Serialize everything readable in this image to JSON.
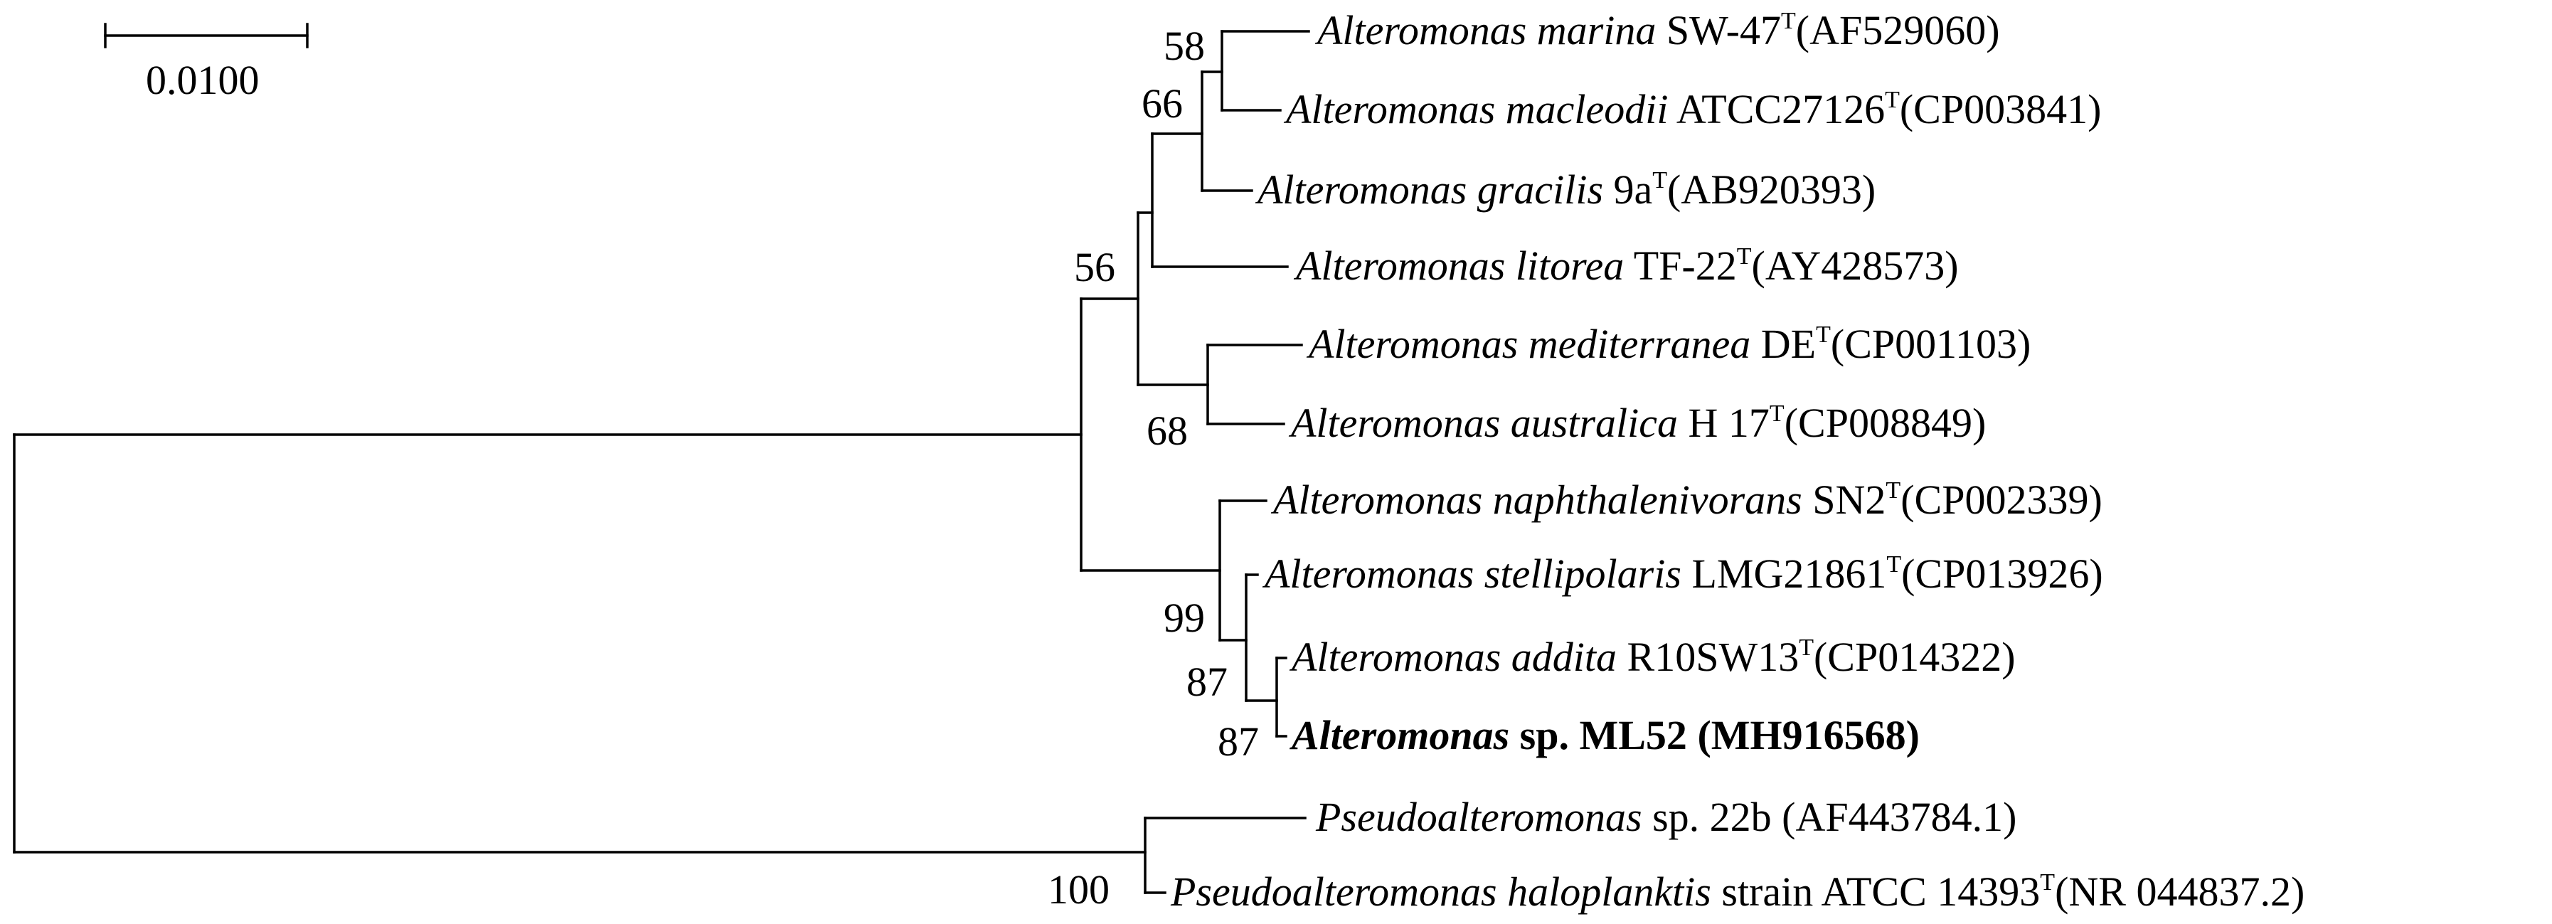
{
  "scale_bar": {
    "label": "0.0100"
  },
  "taxa": [
    {
      "genus": "Alteromonas",
      "species": "marina",
      "strain": "SW-47",
      "type_mark": "T",
      "accession": "(AF529060)",
      "bold": false
    },
    {
      "genus": "Alteromonas",
      "species": "macleodii",
      "strain": "ATCC27126",
      "type_mark": "T",
      "accession": "(CP003841)",
      "bold": false
    },
    {
      "genus": "Alteromonas",
      "species": "gracilis",
      "strain": "9a",
      "type_mark": "T",
      "accession": "(AB920393)",
      "bold": false
    },
    {
      "genus": "Alteromonas",
      "species": "litorea",
      "strain": "TF-22",
      "type_mark": "T",
      "accession": "(AY428573)",
      "bold": false
    },
    {
      "genus": "Alteromonas",
      "species": "mediterranea",
      "strain": "DE",
      "type_mark": "T",
      "accession": "(CP001103)",
      "bold": false
    },
    {
      "genus": "Alteromonas",
      "species": "australica",
      "strain": "H 17",
      "type_mark": "T",
      "accession": "(CP008849)",
      "bold": false
    },
    {
      "genus": "Alteromonas",
      "species": "naphthalenivorans",
      "strain": "SN2",
      "type_mark": "T",
      "accession": "(CP002339)",
      "bold": false
    },
    {
      "genus": "Alteromonas",
      "species": "stellipolaris",
      "strain": "LMG21861",
      "type_mark": "T",
      "accession": "(CP013926)",
      "bold": false
    },
    {
      "genus": "Alteromonas",
      "species": "addita",
      "strain": "R10SW13",
      "type_mark": "T",
      "accession": "(CP014322)",
      "bold": false
    },
    {
      "genus": "Alteromonas",
      "species": "",
      "strain": "sp. ML52",
      "type_mark": "",
      "accession": "(MH916568)",
      "bold": true
    },
    {
      "genus": "Pseudoalteromonas",
      "species": "",
      "strain": "sp. 22b",
      "type_mark": "",
      "accession": "(AF443784.1)",
      "bold": false
    },
    {
      "genus": "Pseudoalteromonas",
      "species": "haloplanktis",
      "strain": "strain ATCC 14393",
      "type_mark": "T",
      "accession": "(NR 044837.2)",
      "bold": false
    }
  ],
  "bootstrap": {
    "marina_macleodii": "58",
    "marina_gracilis": "66",
    "alteromonas_upper": "56",
    "mediterranea_australica": "68",
    "naphthalenivorans_group": "99",
    "stellipolaris_group": "87",
    "addita_ml52": "87",
    "pseudoalteromonas": "100"
  }
}
